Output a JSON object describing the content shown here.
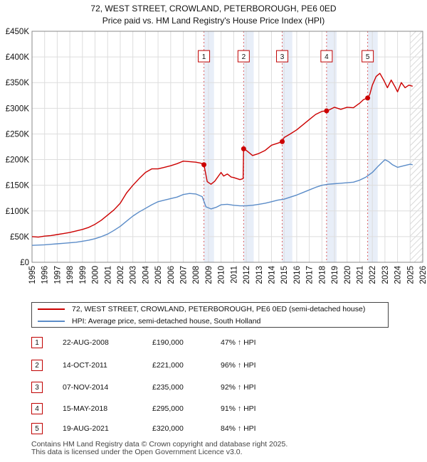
{
  "chart_data": {
    "type": "line",
    "title": "72, WEST STREET, CROWLAND, PETERBOROUGH, PE6 0ED",
    "subtitle": "Price paid vs. HM Land Registry's House Price Index (HPI)",
    "xlabel": "",
    "ylabel": "",
    "xlim": [
      1995,
      2026
    ],
    "ylim": [
      0,
      450000
    ],
    "y_ticks": [
      0,
      50000,
      100000,
      150000,
      200000,
      250000,
      300000,
      350000,
      400000,
      450000
    ],
    "y_tick_labels": [
      "£0",
      "£50K",
      "£100K",
      "£150K",
      "£200K",
      "£250K",
      "£300K",
      "£350K",
      "£400K",
      "£450K"
    ],
    "x_ticks": [
      1995,
      1996,
      1997,
      1998,
      1999,
      2000,
      2001,
      2002,
      2003,
      2004,
      2005,
      2006,
      2007,
      2008,
      2009,
      2010,
      2011,
      2012,
      2013,
      2014,
      2015,
      2016,
      2017,
      2018,
      2019,
      2020,
      2021,
      2022,
      2023,
      2024,
      2025,
      2026
    ],
    "x_tick_labels": [
      "1995",
      "1996",
      "1997",
      "1998",
      "1999",
      "2000",
      "2001",
      "2002",
      "2003",
      "2004",
      "2005",
      "2006",
      "2007",
      "2008",
      "2009",
      "2010",
      "2011",
      "2012",
      "2013",
      "2014",
      "2015",
      "2016",
      "2017",
      "2018",
      "2019",
      "2020",
      "2021",
      "2022",
      "2023",
      "2024",
      "2025",
      "2026"
    ],
    "hatch_from": 2025.0,
    "series": [
      {
        "name": "72, WEST STREET, CROWLAND, PETERBOROUGH, PE6 0ED (semi-detached house)",
        "color": "#cc0000",
        "x": [
          1995.0,
          1995.5,
          1996.0,
          1996.5,
          1997.0,
          1997.5,
          1998.0,
          1998.5,
          1999.0,
          1999.5,
          2000.0,
          2000.5,
          2001.0,
          2001.5,
          2002.0,
          2002.5,
          2003.0,
          2003.5,
          2004.0,
          2004.5,
          2005.0,
          2005.5,
          2006.0,
          2006.5,
          2007.0,
          2007.5,
          2008.0,
          2008.4,
          2008.64,
          2008.9,
          2009.2,
          2009.5,
          2010.0,
          2010.2,
          2010.5,
          2010.8,
          2011.0,
          2011.5,
          2011.75,
          2011.79,
          2012.0,
          2012.5,
          2013.0,
          2013.5,
          2014.0,
          2014.5,
          2014.85,
          2015.0,
          2015.5,
          2016.0,
          2016.5,
          2017.0,
          2017.5,
          2018.0,
          2018.37,
          2018.5,
          2019.0,
          2019.5,
          2020.0,
          2020.5,
          2021.0,
          2021.3,
          2021.63,
          2021.8,
          2022.0,
          2022.3,
          2022.6,
          2022.9,
          2023.2,
          2023.5,
          2023.8,
          2024.0,
          2024.3,
          2024.6,
          2024.9,
          2025.2
        ],
        "y": [
          50000,
          49000,
          51000,
          52000,
          54000,
          56000,
          58000,
          61000,
          64000,
          68000,
          74000,
          82000,
          92000,
          102000,
          115000,
          135000,
          150000,
          163000,
          175000,
          182000,
          182000,
          185000,
          188000,
          192000,
          197000,
          196000,
          195000,
          193000,
          190000,
          157000,
          152000,
          158000,
          175000,
          168000,
          172000,
          166000,
          165000,
          161000,
          163000,
          221000,
          218000,
          208000,
          212000,
          218000,
          228000,
          232000,
          235000,
          243000,
          250000,
          258000,
          268000,
          278000,
          288000,
          294000,
          295000,
          296000,
          302000,
          298000,
          302000,
          301000,
          310000,
          317000,
          320000,
          327000,
          345000,
          362000,
          368000,
          355000,
          340000,
          355000,
          342000,
          332000,
          350000,
          340000,
          345000,
          343000
        ]
      },
      {
        "name": "HPI: Average price, semi-detached house, South Holland",
        "color": "#5b8cc8",
        "x": [
          1995.0,
          1995.5,
          1996.0,
          1996.5,
          1997.0,
          1997.5,
          1998.0,
          1998.5,
          1999.0,
          1999.5,
          2000.0,
          2000.5,
          2001.0,
          2001.5,
          2002.0,
          2002.5,
          2003.0,
          2003.5,
          2004.0,
          2004.5,
          2005.0,
          2005.5,
          2006.0,
          2006.5,
          2007.0,
          2007.5,
          2008.0,
          2008.5,
          2008.8,
          2009.2,
          2009.6,
          2010.0,
          2010.5,
          2011.0,
          2011.5,
          2012.0,
          2012.5,
          2013.0,
          2013.5,
          2014.0,
          2014.5,
          2015.0,
          2015.5,
          2016.0,
          2016.5,
          2017.0,
          2017.5,
          2018.0,
          2018.5,
          2019.0,
          2019.5,
          2020.0,
          2020.5,
          2021.0,
          2021.5,
          2022.0,
          2022.5,
          2023.0,
          2023.3,
          2023.6,
          2024.0,
          2024.5,
          2025.0,
          2025.2
        ],
        "y": [
          33000,
          33500,
          34000,
          35000,
          36000,
          37000,
          38000,
          39000,
          41000,
          43000,
          46000,
          50000,
          55000,
          62000,
          70000,
          80000,
          90000,
          98000,
          105000,
          112000,
          118000,
          121000,
          124000,
          127000,
          132000,
          134000,
          133000,
          128000,
          108000,
          104000,
          107000,
          112000,
          113000,
          111000,
          110000,
          110000,
          111000,
          113000,
          115000,
          118000,
          121000,
          123000,
          127000,
          131000,
          136000,
          141000,
          146000,
          150000,
          152000,
          153000,
          154000,
          155000,
          156000,
          160000,
          166000,
          175000,
          188000,
          200000,
          196000,
          190000,
          185000,
          188000,
          191000,
          190000
        ]
      }
    ],
    "sales": [
      {
        "n": "1",
        "x": 2008.64,
        "y": 190000,
        "date": "22-AUG-2008",
        "price": "£190,000",
        "hpi": "47% ↑ HPI"
      },
      {
        "n": "2",
        "x": 2011.79,
        "y": 221000,
        "date": "14-OCT-2011",
        "price": "£221,000",
        "hpi": "96% ↑ HPI"
      },
      {
        "n": "3",
        "x": 2014.85,
        "y": 235000,
        "date": "07-NOV-2014",
        "price": "£235,000",
        "hpi": "92% ↑ HPI"
      },
      {
        "n": "4",
        "x": 2018.37,
        "y": 295000,
        "date": "15-MAY-2018",
        "price": "£295,000",
        "hpi": "91% ↑ HPI"
      },
      {
        "n": "5",
        "x": 2021.63,
        "y": 320000,
        "date": "19-AUG-2021",
        "price": "£320,000",
        "hpi": "84% ↑ HPI"
      }
    ]
  },
  "legend": {
    "property_label": "72, WEST STREET, CROWLAND, PETERBOROUGH, PE6 0ED (semi-detached house)",
    "hpi_label": "HPI: Average price, semi-detached house, South Holland"
  },
  "footer": {
    "line1": "Contains HM Land Registry data © Crown copyright and database right 2025.",
    "line2": "This data is licensed under the Open Government Licence v3.0."
  },
  "colors": {
    "property": "#cc0000",
    "hpi": "#5b8cc8",
    "shade": "#e8eef8",
    "grid": "#dddddd"
  }
}
